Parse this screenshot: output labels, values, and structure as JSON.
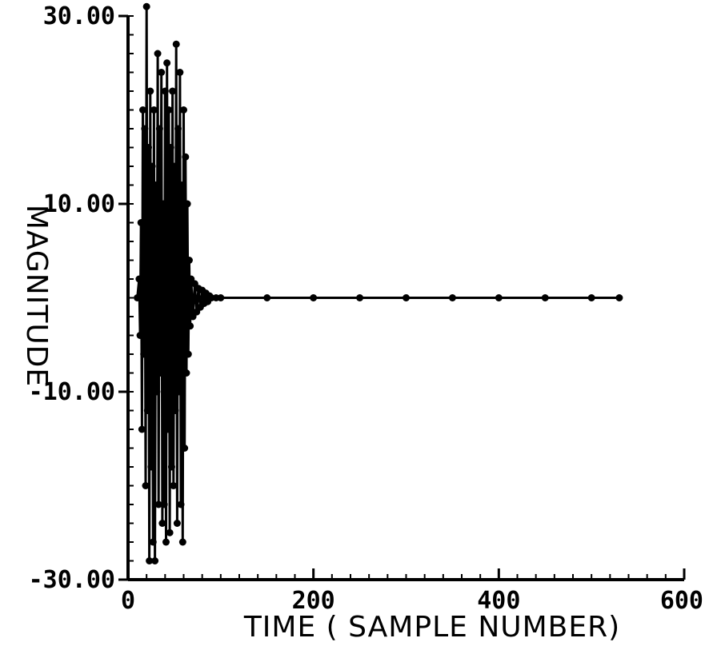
{
  "chart_data": {
    "type": "line",
    "title": "",
    "xlabel": "TIME ( SAMPLE NUMBER)",
    "ylabel": "MAGNITUDE",
    "xlim": [
      0,
      600
    ],
    "ylim": [
      -30,
      30
    ],
    "x_ticks": [
      0,
      200,
      400,
      600
    ],
    "x_tick_labels": [
      "0",
      "200",
      "400",
      "600"
    ],
    "y_ticks": [
      30,
      10,
      -10,
      -30
    ],
    "y_tick_labels": [
      "30.00",
      "10.00",
      "-10.00",
      "-30.00"
    ],
    "grid": false,
    "legend": "none",
    "series": [
      {
        "markers": true,
        "points": [
          [
            10,
            0
          ],
          [
            12,
            2
          ],
          [
            13,
            -4
          ],
          [
            14,
            8
          ],
          [
            15,
            -14
          ],
          [
            16,
            20
          ],
          [
            17,
            -6
          ],
          [
            18,
            18
          ],
          [
            19,
            -20
          ],
          [
            20,
            31
          ],
          [
            21,
            -12
          ],
          [
            22,
            16
          ],
          [
            23,
            -28
          ],
          [
            24,
            22
          ],
          [
            25,
            -18
          ],
          [
            26,
            14
          ],
          [
            27,
            -26
          ],
          [
            28,
            20
          ],
          [
            29,
            -28
          ],
          [
            30,
            12
          ],
          [
            31,
            -10
          ],
          [
            32,
            26
          ],
          [
            33,
            -22
          ],
          [
            34,
            18
          ],
          [
            35,
            -8
          ],
          [
            36,
            24
          ],
          [
            37,
            -24
          ],
          [
            38,
            10
          ],
          [
            39,
            -22
          ],
          [
            40,
            22
          ],
          [
            41,
            -26
          ],
          [
            42,
            25
          ],
          [
            43,
            -14
          ],
          [
            44,
            20
          ],
          [
            45,
            -25
          ],
          [
            46,
            16
          ],
          [
            47,
            -18
          ],
          [
            48,
            22
          ],
          [
            49,
            -20
          ],
          [
            50,
            14
          ],
          [
            51,
            -12
          ],
          [
            52,
            27
          ],
          [
            53,
            -24
          ],
          [
            54,
            18
          ],
          [
            55,
            -10
          ],
          [
            56,
            24
          ],
          [
            57,
            -22
          ],
          [
            58,
            12
          ],
          [
            59,
            -26
          ],
          [
            60,
            20
          ],
          [
            61,
            -16
          ],
          [
            62,
            15
          ],
          [
            63,
            -8
          ],
          [
            64,
            10
          ],
          [
            65,
            -6
          ],
          [
            66,
            4
          ],
          [
            67,
            -3
          ],
          [
            68,
            2
          ],
          [
            70,
            -2
          ],
          [
            72,
            1.5
          ],
          [
            74,
            -1.5
          ],
          [
            76,
            1
          ],
          [
            78,
            -1
          ],
          [
            80,
            0.8
          ],
          [
            82,
            -0.6
          ],
          [
            84,
            0.5
          ],
          [
            86,
            -0.4
          ],
          [
            88,
            0.2
          ],
          [
            90,
            0
          ],
          [
            95,
            0
          ],
          [
            100,
            0
          ],
          [
            150,
            0
          ],
          [
            200,
            0
          ],
          [
            250,
            0
          ],
          [
            300,
            0
          ],
          [
            350,
            0
          ],
          [
            400,
            0
          ],
          [
            450,
            0
          ],
          [
            500,
            0
          ],
          [
            530,
            0
          ]
        ]
      }
    ]
  }
}
